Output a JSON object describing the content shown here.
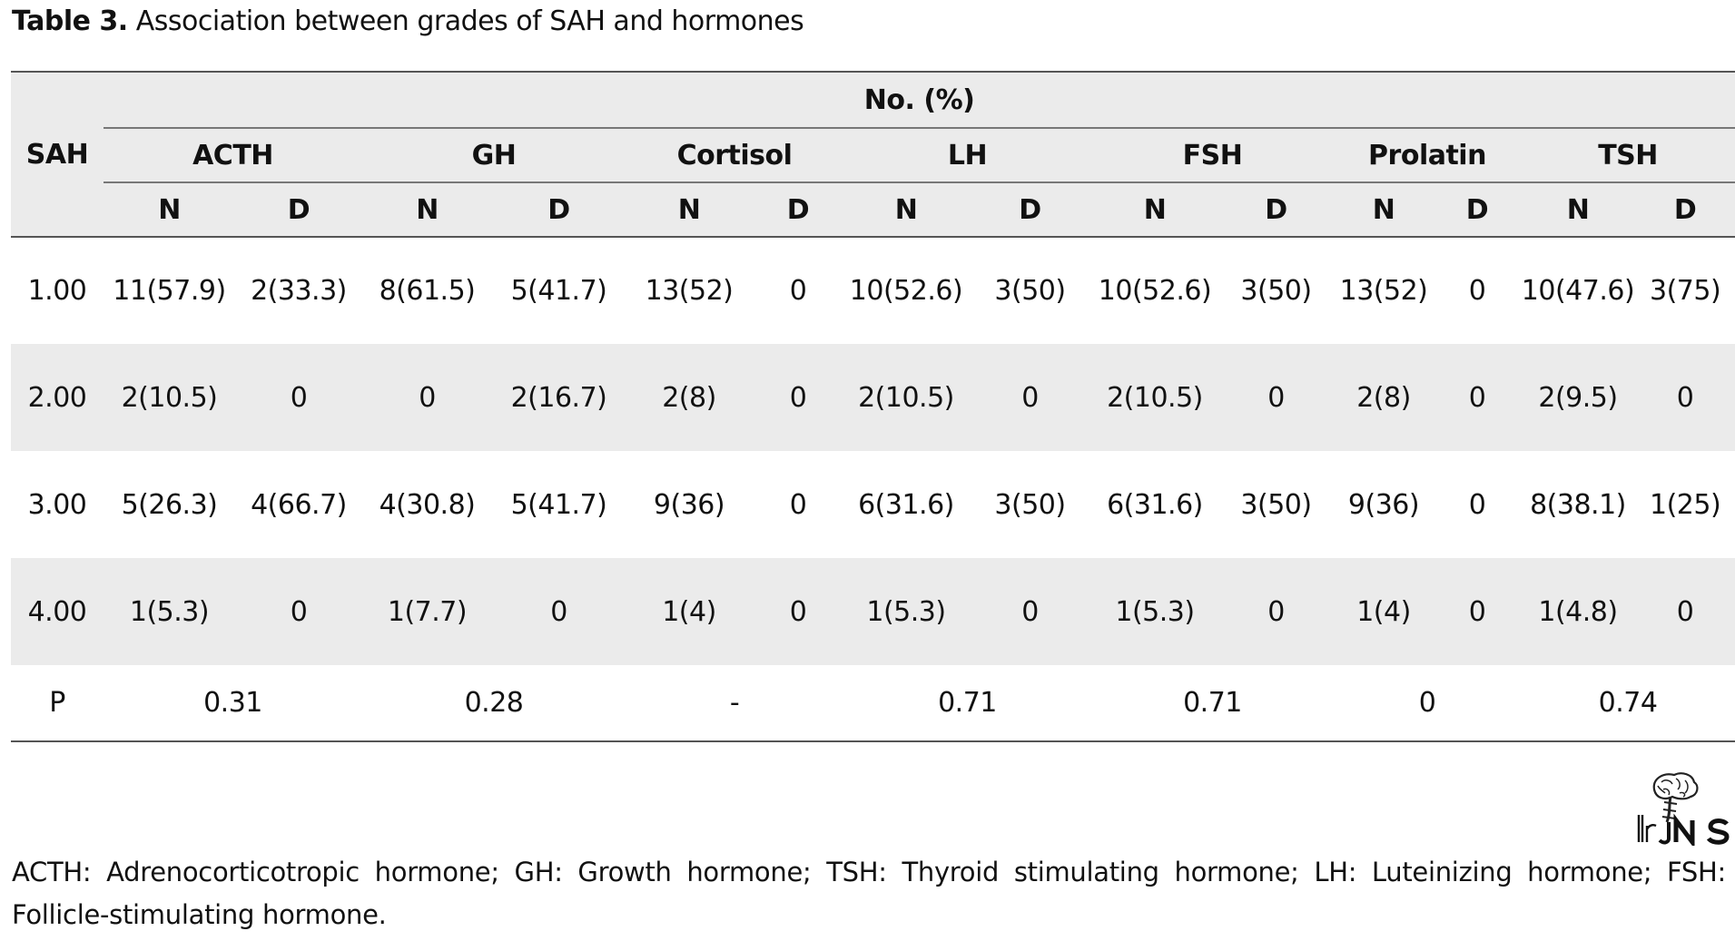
{
  "caption": {
    "label": "Table 3.",
    "text": "Association between grades of SAH and hormones"
  },
  "table": {
    "row_header": "SAH",
    "group_header": "No. (%)",
    "hormones": [
      "ACTH",
      "GH",
      "Cortisol",
      "LH",
      "FSH",
      "Prolatin",
      "TSH"
    ],
    "sub_n": "N",
    "sub_d": "D",
    "rows": [
      {
        "grade": "1.00",
        "cells": [
          "11(57.9)",
          "2(33.3)",
          "8(61.5)",
          "5(41.7)",
          "13(52)",
          "0",
          "10(52.6)",
          "3(50)",
          "10(52.6)",
          "3(50)",
          "13(52)",
          "0",
          "10(47.6)",
          "3(75)"
        ]
      },
      {
        "grade": "2.00",
        "cells": [
          "2(10.5)",
          "0",
          "0",
          "2(16.7)",
          "2(8)",
          "0",
          "2(10.5)",
          "0",
          "2(10.5)",
          "0",
          "2(8)",
          "0",
          "2(9.5)",
          "0"
        ]
      },
      {
        "grade": "3.00",
        "cells": [
          "5(26.3)",
          "4(66.7)",
          "4(30.8)",
          "5(41.7)",
          "9(36)",
          "0",
          "6(31.6)",
          "3(50)",
          "6(31.6)",
          "3(50)",
          "9(36)",
          "0",
          "8(38.1)",
          "1(25)"
        ]
      },
      {
        "grade": "4.00",
        "cells": [
          "1(5.3)",
          "0",
          "1(7.7)",
          "0",
          "1(4)",
          "0",
          "1(5.3)",
          "0",
          "1(5.3)",
          "0",
          "1(4)",
          "0",
          "1(4.8)",
          "0"
        ]
      }
    ],
    "p_row": {
      "label": "P",
      "values": [
        "0.31",
        "0.28",
        "-",
        "0.71",
        "0.71",
        "0",
        "0.74"
      ]
    }
  },
  "logo": {
    "text": "IrJNS",
    "icon": "brain-logo-icon"
  },
  "footnote": "ACTH: Adrenocorticotropic hormone; GH: Growth hormone; TSH: Thyroid stimulating hormone; LH: Luteinizing hormone; FSH: Follicle-stimulating hormone."
}
